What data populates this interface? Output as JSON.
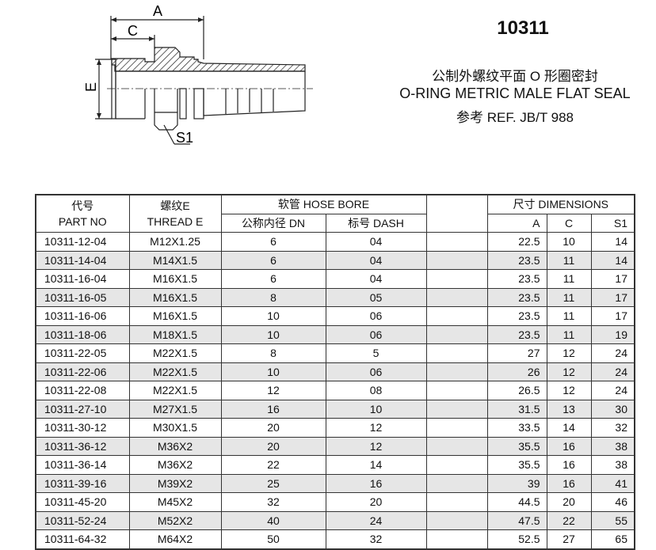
{
  "drawing": {
    "labels": {
      "a": "A",
      "c": "C",
      "e": "E",
      "s1": "S1"
    }
  },
  "header": {
    "code": "10311",
    "subtitle_cn": "公制外螺纹平面 O 形圈密封",
    "subtitle_en": "O-RING METRIC MALE FLAT SEAL",
    "reference": "参考 REF. JB/T 988"
  },
  "table": {
    "headers": {
      "part_cn": "代号",
      "part_en": "PART NO",
      "thread_cn": "螺纹E",
      "thread_en": "THREAD E",
      "hose_bore": "软管 HOSE BORE",
      "dn": "公称内径 DN",
      "dash": "标号 DASH",
      "dimensions": "尺寸 DIMENSIONS",
      "a": "A",
      "c": "C",
      "s1": "S1"
    },
    "rows": [
      [
        "10311-12-04",
        "M12X1.25",
        "6",
        "04",
        "22.5",
        "10",
        "14"
      ],
      [
        "10311-14-04",
        "M14X1.5",
        "6",
        "04",
        "23.5",
        "11",
        "14"
      ],
      [
        "10311-16-04",
        "M16X1.5",
        "6",
        "04",
        "23.5",
        "11",
        "17"
      ],
      [
        "10311-16-05",
        "M16X1.5",
        "8",
        "05",
        "23.5",
        "11",
        "17"
      ],
      [
        "10311-16-06",
        "M16X1.5",
        "10",
        "06",
        "23.5",
        "11",
        "17"
      ],
      [
        "10311-18-06",
        "M18X1.5",
        "10",
        "06",
        "23.5",
        "11",
        "19"
      ],
      [
        "10311-22-05",
        "M22X1.5",
        "8",
        "5",
        "27",
        "12",
        "24"
      ],
      [
        "10311-22-06",
        "M22X1.5",
        "10",
        "06",
        "26",
        "12",
        "24"
      ],
      [
        "10311-22-08",
        "M22X1.5",
        "12",
        "08",
        "26.5",
        "12",
        "24"
      ],
      [
        "10311-27-10",
        "M27X1.5",
        "16",
        "10",
        "31.5",
        "13",
        "30"
      ],
      [
        "10311-30-12",
        "M30X1.5",
        "20",
        "12",
        "33.5",
        "14",
        "32"
      ],
      [
        "10311-36-12",
        "M36X2",
        "20",
        "12",
        "35.5",
        "16",
        "38"
      ],
      [
        "10311-36-14",
        "M36X2",
        "22",
        "14",
        "35.5",
        "16",
        "38"
      ],
      [
        "10311-39-16",
        "M39X2",
        "25",
        "16",
        "39",
        "16",
        "41"
      ],
      [
        "10311-45-20",
        "M45X2",
        "32",
        "20",
        "44.5",
        "20",
        "46"
      ],
      [
        "10311-52-24",
        "M52X2",
        "40",
        "24",
        "47.5",
        "22",
        "55"
      ],
      [
        "10311-64-32",
        "M64X2",
        "50",
        "32",
        "52.5",
        "27",
        "65"
      ]
    ]
  }
}
